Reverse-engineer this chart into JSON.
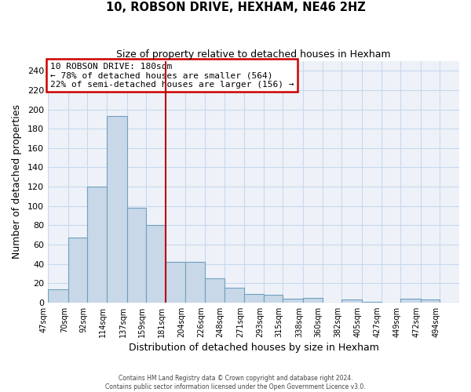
{
  "title": "10, ROBSON DRIVE, HEXHAM, NE46 2HZ",
  "subtitle": "Size of property relative to detached houses in Hexham",
  "xlabel": "Distribution of detached houses by size in Hexham",
  "ylabel": "Number of detached properties",
  "bar_labels": [
    "47sqm",
    "70sqm",
    "92sqm",
    "114sqm",
    "137sqm",
    "159sqm",
    "181sqm",
    "204sqm",
    "226sqm",
    "248sqm",
    "271sqm",
    "293sqm",
    "315sqm",
    "338sqm",
    "360sqm",
    "382sqm",
    "405sqm",
    "427sqm",
    "449sqm",
    "472sqm",
    "494sqm"
  ],
  "bar_edges": [
    47,
    70,
    92,
    114,
    137,
    159,
    181,
    204,
    226,
    248,
    271,
    293,
    315,
    338,
    360,
    382,
    405,
    427,
    449,
    472,
    494,
    516
  ],
  "bar_heights": [
    14,
    67,
    120,
    193,
    98,
    80,
    42,
    42,
    25,
    15,
    9,
    8,
    4,
    5,
    0,
    3,
    1,
    0,
    4,
    3,
    0
  ],
  "bar_color": "#c8d8e8",
  "bar_edge_color": "#6fa0c0",
  "vline_x": 181,
  "vline_color": "#bb0000",
  "annotation_text_line1": "10 ROBSON DRIVE: 180sqm",
  "annotation_text_line2": "← 78% of detached houses are smaller (564)",
  "annotation_text_line3": "22% of semi-detached houses are larger (156) →",
  "annotation_box_color": "#cc0000",
  "ylim": [
    0,
    250
  ],
  "yticks": [
    0,
    20,
    40,
    60,
    80,
    100,
    120,
    140,
    160,
    180,
    200,
    220,
    240
  ],
  "grid_color": "#c8d8f0",
  "background_color": "#eef2f8",
  "footer_line1": "Contains HM Land Registry data © Crown copyright and database right 2024.",
  "footer_line2": "Contains public sector information licensed under the Open Government Licence v3.0."
}
